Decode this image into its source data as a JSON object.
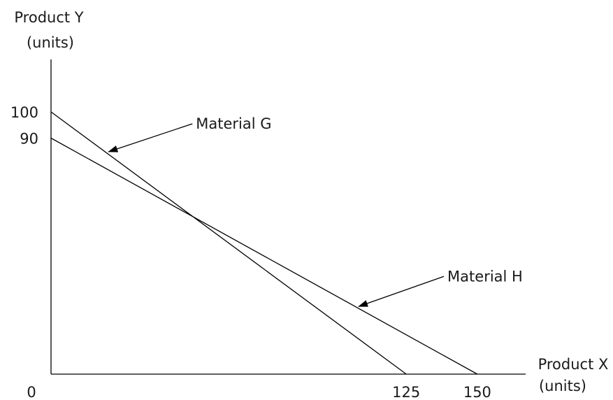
{
  "chart_data": {
    "type": "line",
    "ylabel_line1": "Product Y",
    "ylabel_line2": "(units)",
    "xlabel_line1": "Product X",
    "xlabel_line2": "(units)",
    "origin_label": "0",
    "xlim": [
      0,
      167
    ],
    "ylim": [
      0,
      120
    ],
    "x_ticks": [
      125,
      150
    ],
    "y_ticks": [
      100,
      90
    ],
    "series": [
      {
        "name": "Material G",
        "x": [
          0,
          125
        ],
        "y": [
          100,
          0
        ]
      },
      {
        "name": "Material H",
        "x": [
          0,
          150
        ],
        "y": [
          90,
          0
        ]
      }
    ],
    "annotations": [
      {
        "text": "Material G",
        "series": 0,
        "point_x": 19
      },
      {
        "text": "Material H",
        "series": 1,
        "point_x": 107
      }
    ],
    "grid": false,
    "legend": "none"
  }
}
